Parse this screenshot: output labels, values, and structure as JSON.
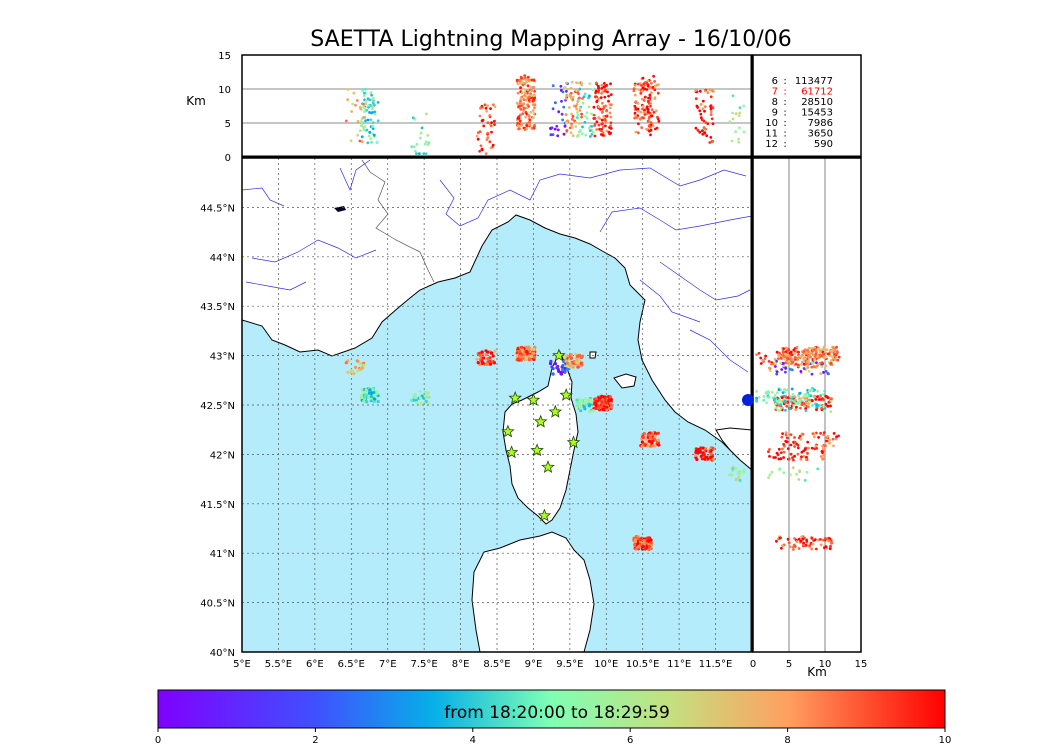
{
  "chart_data": {
    "type": "scatter",
    "title": "SAETTA Lightning Mapping Array - 16/10/06",
    "top_panel": {
      "ylabel": "Km",
      "ylim": [
        0,
        15
      ],
      "yticks": [
        "0",
        "5",
        "10",
        "15"
      ]
    },
    "side_panel": {
      "xlabel": "Km",
      "xlim": [
        0,
        15
      ],
      "xticks": [
        "0",
        "5",
        "10",
        "15"
      ]
    },
    "map": {
      "xlim": [
        5.0,
        12.0
      ],
      "ylim": [
        40.0,
        45.0
      ],
      "xticks": [
        "5°E",
        "5.5°E",
        "6°E",
        "6.5°E",
        "7°E",
        "7.5°E",
        "8°E",
        "8.5°E",
        "9°E",
        "9.5°E",
        "10°E",
        "10.5°E",
        "11°E",
        "11.5°E"
      ],
      "yticks": [
        "40°N",
        "40.5°N",
        "41°N",
        "41.5°N",
        "42°N",
        "42.5°N",
        "43°N",
        "43.5°N",
        "44°N",
        "44.5°N"
      ],
      "grid": true
    },
    "stats": [
      {
        "label": "6",
        "value": "113477",
        "color": "#000000"
      },
      {
        "label": "7",
        "value": "61712",
        "color": "#ff0000"
      },
      {
        "label": "8",
        "value": "28510",
        "color": "#000000"
      },
      {
        "label": "9",
        "value": "15453",
        "color": "#000000"
      },
      {
        "label": "10",
        "value": "7986",
        "color": "#000000"
      },
      {
        "label": "11",
        "value": "3650",
        "color": "#000000"
      },
      {
        "label": "12",
        "value": "590",
        "color": "#000000"
      }
    ],
    "colorbar": {
      "label": "from 18:20:00 to 18:29:59",
      "ticks": [
        "0",
        "2",
        "4",
        "6",
        "8",
        "10"
      ],
      "range": [
        0,
        10
      ],
      "colormap": "rainbow"
    },
    "clusters": [
      {
        "lon": 6.75,
        "lat": 42.6,
        "t": 4.5,
        "alt": 6,
        "n": 70
      },
      {
        "lon": 6.55,
        "lat": 42.88,
        "t": 7.5,
        "alt": 6,
        "n": 20
      },
      {
        "lon": 7.45,
        "lat": 42.58,
        "t": 5.0,
        "alt": 3,
        "n": 20
      },
      {
        "lon": 8.35,
        "lat": 42.98,
        "t": 9.0,
        "alt": 4,
        "n": 40
      },
      {
        "lon": 8.9,
        "lat": 43.02,
        "t": 8.5,
        "alt": 8,
        "n": 150
      },
      {
        "lon": 9.35,
        "lat": 42.88,
        "t": 1.5,
        "alt": 7,
        "n": 30
      },
      {
        "lon": 9.55,
        "lat": 42.95,
        "t": 8.0,
        "alt": 7,
        "n": 60
      },
      {
        "lon": 9.95,
        "lat": 42.52,
        "t": 9.5,
        "alt": 7,
        "n": 90
      },
      {
        "lon": 9.7,
        "lat": 42.5,
        "t": 5.0,
        "alt": 7,
        "n": 40
      },
      {
        "lon": 10.6,
        "lat": 42.15,
        "t": 9.0,
        "alt": 8,
        "n": 50
      },
      {
        "lon": 10.5,
        "lat": 41.1,
        "t": 9.2,
        "alt": 7,
        "n": 70
      },
      {
        "lon": 11.35,
        "lat": 42.0,
        "t": 9.5,
        "alt": 6,
        "n": 50
      },
      {
        "lon": 11.8,
        "lat": 41.8,
        "t": 5.5,
        "alt": 5,
        "n": 15
      }
    ],
    "stations": [
      {
        "lon": 9.35,
        "lat": 43.0
      },
      {
        "lon": 8.75,
        "lat": 42.57
      },
      {
        "lon": 9.0,
        "lat": 42.55
      },
      {
        "lon": 9.45,
        "lat": 42.6
      },
      {
        "lon": 9.3,
        "lat": 42.43
      },
      {
        "lon": 9.1,
        "lat": 42.33
      },
      {
        "lon": 8.65,
        "lat": 42.23
      },
      {
        "lon": 9.55,
        "lat": 42.12
      },
      {
        "lon": 8.7,
        "lat": 42.02
      },
      {
        "lon": 9.05,
        "lat": 42.04
      },
      {
        "lon": 9.2,
        "lat": 41.87
      },
      {
        "lon": 9.15,
        "lat": 41.38
      }
    ]
  }
}
